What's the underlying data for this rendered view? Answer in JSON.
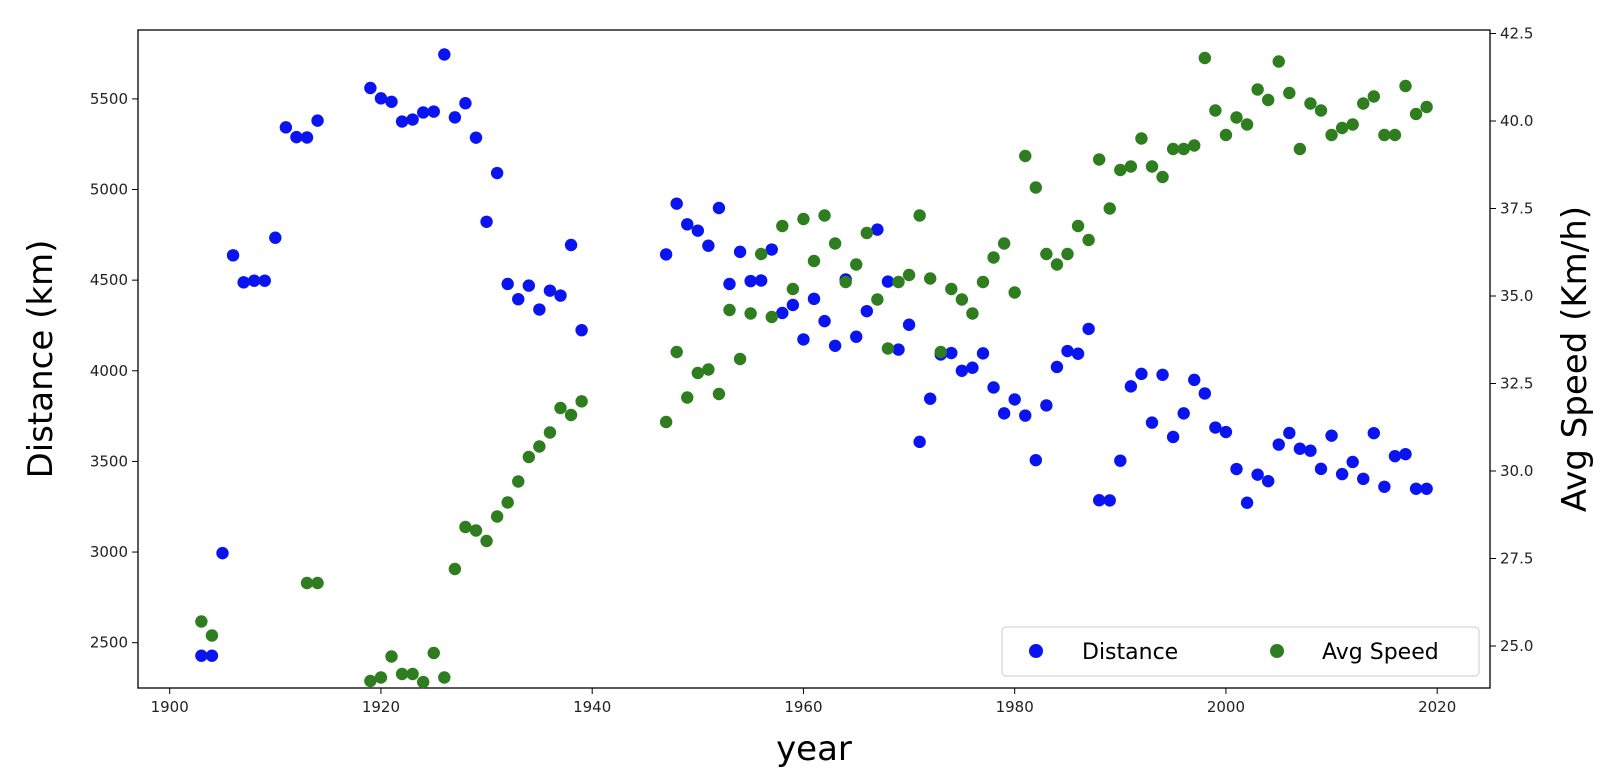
{
  "chart_data": {
    "type": "scatter",
    "xlabel": "year",
    "ylabel": "Distance (km)",
    "y2label": "Avg Speed (Km/h)",
    "xlim": [
      1897,
      2025
    ],
    "ylim": [
      2250,
      5880
    ],
    "y2lim": [
      23.8,
      42.6
    ],
    "xticks": [
      1900,
      1920,
      1940,
      1960,
      1980,
      2000,
      2020
    ],
    "yticks": [
      2500,
      3000,
      3500,
      4000,
      4500,
      5000,
      5500
    ],
    "y2ticks": [
      25.0,
      27.5,
      30.0,
      32.5,
      35.0,
      37.5,
      40.0,
      42.5
    ],
    "y2tick_labels": [
      "25.0",
      "27.5",
      "30.0",
      "32.5",
      "35.0",
      "37.5",
      "40.0",
      "42.5"
    ],
    "legend": {
      "position": "lower-right",
      "columns": 2
    },
    "grid": false,
    "colors": {
      "distance": "#0a14f0",
      "speed": "#2e7d1f",
      "axis": "#000000"
    },
    "series": [
      {
        "name": "Distance",
        "axis": "left",
        "color": "#0a14f0",
        "points": [
          [
            1903,
            2428
          ],
          [
            1904,
            2428
          ],
          [
            1905,
            2994
          ],
          [
            1906,
            4637
          ],
          [
            1907,
            4488
          ],
          [
            1908,
            4497
          ],
          [
            1909,
            4497
          ],
          [
            1910,
            4734
          ],
          [
            1911,
            5343
          ],
          [
            1912,
            5289
          ],
          [
            1913,
            5287
          ],
          [
            1914,
            5380
          ],
          [
            1919,
            5560
          ],
          [
            1920,
            5503
          ],
          [
            1921,
            5484
          ],
          [
            1922,
            5375
          ],
          [
            1923,
            5386
          ],
          [
            1924,
            5425
          ],
          [
            1925,
            5430
          ],
          [
            1926,
            5745
          ],
          [
            1927,
            5398
          ],
          [
            1928,
            5476
          ],
          [
            1929,
            5286
          ],
          [
            1930,
            4822
          ],
          [
            1931,
            5091
          ],
          [
            1932,
            4479
          ],
          [
            1933,
            4395
          ],
          [
            1934,
            4470
          ],
          [
            1935,
            4338
          ],
          [
            1936,
            4442
          ],
          [
            1937,
            4415
          ],
          [
            1938,
            4694
          ],
          [
            1939,
            4224
          ],
          [
            1947,
            4642
          ],
          [
            1948,
            4922
          ],
          [
            1949,
            4808
          ],
          [
            1950,
            4773
          ],
          [
            1951,
            4690
          ],
          [
            1952,
            4898
          ],
          [
            1953,
            4479
          ],
          [
            1954,
            4656
          ],
          [
            1955,
            4495
          ],
          [
            1956,
            4498
          ],
          [
            1957,
            4669
          ],
          [
            1958,
            4319
          ],
          [
            1959,
            4363
          ],
          [
            1960,
            4173
          ],
          [
            1961,
            4397
          ],
          [
            1962,
            4274
          ],
          [
            1963,
            4138
          ],
          [
            1964,
            4504
          ],
          [
            1965,
            4188
          ],
          [
            1966,
            4329
          ],
          [
            1967,
            4779
          ],
          [
            1968,
            4492
          ],
          [
            1969,
            4117
          ],
          [
            1970,
            4254
          ],
          [
            1971,
            3608
          ],
          [
            1972,
            3846
          ],
          [
            1973,
            4090
          ],
          [
            1974,
            4098
          ],
          [
            1975,
            4000
          ],
          [
            1976,
            4017
          ],
          [
            1977,
            4096
          ],
          [
            1978,
            3908
          ],
          [
            1979,
            3765
          ],
          [
            1980,
            3842
          ],
          [
            1981,
            3753
          ],
          [
            1982,
            3507
          ],
          [
            1983,
            3809
          ],
          [
            1984,
            4021
          ],
          [
            1985,
            4109
          ],
          [
            1986,
            4094
          ],
          [
            1987,
            4231
          ],
          [
            1988,
            3286
          ],
          [
            1989,
            3285
          ],
          [
            1990,
            3504
          ],
          [
            1991,
            3914
          ],
          [
            1992,
            3983
          ],
          [
            1993,
            3714
          ],
          [
            1994,
            3978
          ],
          [
            1995,
            3635
          ],
          [
            1996,
            3765
          ],
          [
            1997,
            3950
          ],
          [
            1998,
            3875
          ],
          [
            1999,
            3687
          ],
          [
            2000,
            3662
          ],
          [
            2001,
            3458
          ],
          [
            2002,
            3272
          ],
          [
            2003,
            3427
          ],
          [
            2004,
            3391
          ],
          [
            2005,
            3593
          ],
          [
            2006,
            3657
          ],
          [
            2007,
            3570
          ],
          [
            2008,
            3559
          ],
          [
            2009,
            3459
          ],
          [
            2010,
            3642
          ],
          [
            2011,
            3430
          ],
          [
            2012,
            3497
          ],
          [
            2013,
            3404
          ],
          [
            2014,
            3656
          ],
          [
            2015,
            3360
          ],
          [
            2016,
            3529
          ],
          [
            2017,
            3540
          ],
          [
            2018,
            3349
          ],
          [
            2019,
            3349
          ]
        ]
      },
      {
        "name": "Avg Speed",
        "axis": "right",
        "color": "#2e7d1f",
        "points": [
          [
            1903,
            25.7
          ],
          [
            1904,
            25.3
          ],
          [
            1913,
            26.8
          ],
          [
            1914,
            26.8
          ],
          [
            1919,
            24.0
          ],
          [
            1920,
            24.1
          ],
          [
            1921,
            24.7
          ],
          [
            1922,
            24.2
          ],
          [
            1923,
            24.2
          ],
          [
            1924,
            23.97
          ],
          [
            1925,
            24.8
          ],
          [
            1926,
            24.1
          ],
          [
            1927,
            27.2
          ],
          [
            1928,
            28.4
          ],
          [
            1929,
            28.3
          ],
          [
            1930,
            28.0
          ],
          [
            1931,
            28.7
          ],
          [
            1932,
            29.1
          ],
          [
            1933,
            29.7
          ],
          [
            1934,
            30.4
          ],
          [
            1935,
            30.7
          ],
          [
            1936,
            31.1
          ],
          [
            1937,
            31.8
          ],
          [
            1938,
            31.6
          ],
          [
            1939,
            31.99
          ],
          [
            1947,
            31.4
          ],
          [
            1948,
            33.4
          ],
          [
            1949,
            32.1
          ],
          [
            1950,
            32.8
          ],
          [
            1951,
            32.9
          ],
          [
            1952,
            32.2
          ],
          [
            1953,
            34.6
          ],
          [
            1954,
            33.2
          ],
          [
            1955,
            34.5
          ],
          [
            1956,
            36.2
          ],
          [
            1957,
            34.4
          ],
          [
            1958,
            37.0
          ],
          [
            1959,
            35.2
          ],
          [
            1960,
            37.2
          ],
          [
            1961,
            36.0
          ],
          [
            1962,
            37.3
          ],
          [
            1963,
            36.5
          ],
          [
            1964,
            35.4
          ],
          [
            1965,
            35.9
          ],
          [
            1966,
            36.8
          ],
          [
            1967,
            34.9
          ],
          [
            1968,
            33.5
          ],
          [
            1969,
            35.4
          ],
          [
            1970,
            35.6
          ],
          [
            1971,
            37.3
          ],
          [
            1972,
            35.5
          ],
          [
            1973,
            33.4
          ],
          [
            1974,
            35.2
          ],
          [
            1975,
            34.9
          ],
          [
            1976,
            34.5
          ],
          [
            1977,
            35.4
          ],
          [
            1978,
            36.1
          ],
          [
            1979,
            36.5
          ],
          [
            1980,
            35.1
          ],
          [
            1981,
            39.0
          ],
          [
            1982,
            38.1
          ],
          [
            1983,
            36.2
          ],
          [
            1984,
            35.9
          ],
          [
            1985,
            36.2
          ],
          [
            1986,
            37.0
          ],
          [
            1987,
            36.6
          ],
          [
            1988,
            38.9
          ],
          [
            1989,
            37.5
          ],
          [
            1990,
            38.6
          ],
          [
            1991,
            38.7
          ],
          [
            1992,
            39.5
          ],
          [
            1993,
            38.7
          ],
          [
            1994,
            38.4
          ],
          [
            1995,
            39.2
          ],
          [
            1996,
            39.2
          ],
          [
            1997,
            39.3
          ],
          [
            1998,
            41.8
          ],
          [
            1999,
            40.3
          ],
          [
            2000,
            39.6
          ],
          [
            2001,
            40.1
          ],
          [
            2002,
            39.9
          ],
          [
            2003,
            40.9
          ],
          [
            2004,
            40.6
          ],
          [
            2005,
            41.7
          ],
          [
            2006,
            40.8
          ],
          [
            2007,
            39.2
          ],
          [
            2008,
            40.5
          ],
          [
            2009,
            40.3
          ],
          [
            2010,
            39.6
          ],
          [
            2011,
            39.8
          ],
          [
            2012,
            39.9
          ],
          [
            2013,
            40.5
          ],
          [
            2014,
            40.7
          ],
          [
            2015,
            39.6
          ],
          [
            2016,
            39.6
          ],
          [
            2017,
            41.0
          ],
          [
            2018,
            40.2
          ],
          [
            2019,
            40.4
          ]
        ]
      }
    ]
  }
}
